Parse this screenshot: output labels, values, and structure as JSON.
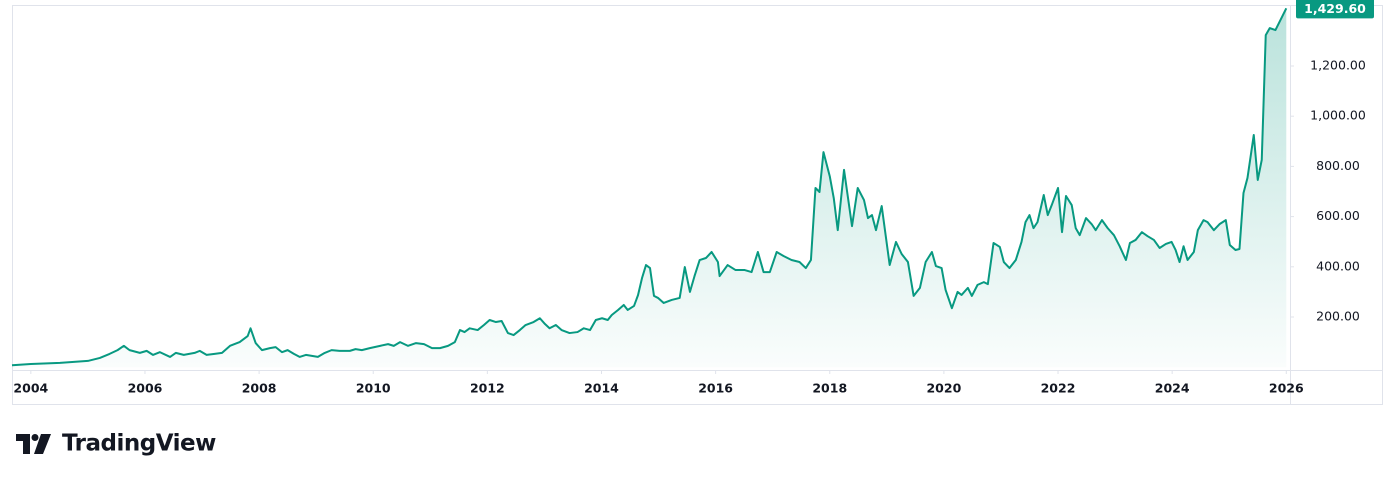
{
  "chart_data": {
    "type": "area",
    "color": "#089981",
    "grid": false,
    "xlim": [
      2003.67,
      2026.03
    ],
    "ylim": [
      0,
      1443
    ],
    "xticks": [
      2004,
      2006,
      2008,
      2010,
      2012,
      2014,
      2016,
      2018,
      2020,
      2022,
      2024,
      2026
    ],
    "yticks": [
      {
        "value": 200,
        "label": "200.00"
      },
      {
        "value": 400,
        "label": "400.00"
      },
      {
        "value": 600,
        "label": "600.00"
      },
      {
        "value": 800,
        "label": "800.00"
      },
      {
        "value": 1000,
        "label": "1,000.00"
      },
      {
        "value": 1200,
        "label": "1,200.00"
      }
    ],
    "last_price": {
      "value": 1429.6,
      "label": "1,429.60"
    },
    "x": [
      2003.67,
      2004.0,
      2004.51,
      2005.0,
      2005.21,
      2005.38,
      2005.52,
      2005.63,
      2005.73,
      2005.91,
      2006.03,
      2006.14,
      2006.26,
      2006.44,
      2006.54,
      2006.68,
      2006.87,
      2006.96,
      2007.08,
      2007.22,
      2007.35,
      2007.49,
      2007.66,
      2007.8,
      2007.85,
      2007.94,
      2008.05,
      2008.19,
      2008.29,
      2008.4,
      2008.5,
      2008.61,
      2008.71,
      2008.82,
      2009.03,
      2009.15,
      2009.27,
      2009.41,
      2009.59,
      2009.69,
      2009.8,
      2009.94,
      2010.12,
      2010.26,
      2010.36,
      2010.47,
      2010.61,
      2010.75,
      2010.89,
      2011.03,
      2011.17,
      2011.31,
      2011.43,
      2011.52,
      2011.6,
      2011.69,
      2011.83,
      2011.94,
      2012.04,
      2012.15,
      2012.25,
      2012.36,
      2012.46,
      2012.57,
      2012.67,
      2012.81,
      2012.92,
      2013.01,
      2013.09,
      2013.2,
      2013.3,
      2013.44,
      2013.58,
      2013.69,
      2013.8,
      2013.9,
      2014.01,
      2014.11,
      2014.18,
      2014.29,
      2014.39,
      2014.46,
      2014.57,
      2014.64,
      2014.71,
      2014.78,
      2014.85,
      2014.92,
      2014.99,
      2015.09,
      2015.23,
      2015.37,
      2015.46,
      2015.55,
      2015.63,
      2015.72,
      2015.83,
      2015.93,
      2016.04,
      2016.07,
      2016.21,
      2016.35,
      2016.51,
      2016.63,
      2016.74,
      2016.84,
      2016.95,
      2017.07,
      2017.19,
      2017.33,
      2017.47,
      2017.58,
      2017.67,
      2017.75,
      2017.82,
      2017.89,
      2018.0,
      2018.07,
      2018.14,
      2018.25,
      2018.32,
      2018.39,
      2018.49,
      2018.6,
      2018.67,
      2018.74,
      2018.81,
      2018.91,
      2019.05,
      2019.16,
      2019.26,
      2019.37,
      2019.47,
      2019.58,
      2019.68,
      2019.79,
      2019.86,
      2019.96,
      2020.03,
      2020.14,
      2020.24,
      2020.31,
      2020.42,
      2020.49,
      2020.59,
      2020.7,
      2020.77,
      2020.87,
      2020.98,
      2021.05,
      2021.15,
      2021.26,
      2021.36,
      2021.43,
      2021.5,
      2021.57,
      2021.64,
      2021.75,
      2021.82,
      2021.89,
      2022.0,
      2022.07,
      2022.14,
      2022.24,
      2022.31,
      2022.38,
      2022.49,
      2022.59,
      2022.66,
      2022.77,
      2022.87,
      2022.98,
      2023.08,
      2023.19,
      2023.26,
      2023.36,
      2023.47,
      2023.57,
      2023.68,
      2023.78,
      2023.89,
      2023.99,
      2024.06,
      2024.13,
      2024.2,
      2024.27,
      2024.38,
      2024.45,
      2024.55,
      2024.62,
      2024.73,
      2024.83,
      2024.94,
      2025.01,
      2025.11,
      2025.18,
      2025.25,
      2025.32,
      2025.43,
      2025.5,
      2025.57,
      2025.64,
      2025.71,
      2025.81,
      2026.0
    ],
    "values": [
      8,
      13,
      17,
      25,
      37,
      53,
      68,
      85,
      68,
      57,
      65,
      49,
      60,
      41,
      57,
      49,
      57,
      65,
      49,
      53,
      57,
      85,
      100,
      124,
      155,
      96,
      68,
      76,
      80,
      60,
      68,
      53,
      41,
      49,
      41,
      57,
      68,
      65,
      65,
      72,
      68,
      76,
      85,
      92,
      85,
      100,
      85,
      96,
      92,
      76,
      76,
      85,
      100,
      148,
      140,
      155,
      148,
      168,
      188,
      180,
      184,
      136,
      128,
      148,
      168,
      180,
      195,
      172,
      155,
      168,
      148,
      136,
      140,
      155,
      148,
      188,
      195,
      188,
      208,
      228,
      248,
      228,
      244,
      287,
      355,
      407,
      395,
      284,
      276,
      256,
      268,
      276,
      399,
      300,
      363,
      427,
      435,
      459,
      419,
      363,
      407,
      387,
      387,
      379,
      459,
      379,
      379,
      459,
      443,
      427,
      419,
      395,
      427,
      714,
      698,
      857,
      761,
      674,
      546,
      786,
      674,
      562,
      714,
      666,
      594,
      606,
      546,
      642,
      407,
      499,
      451,
      419,
      284,
      316,
      419,
      459,
      403,
      395,
      308,
      235,
      300,
      288,
      316,
      284,
      328,
      339,
      331,
      495,
      479,
      419,
      395,
      427,
      499,
      578,
      606,
      554,
      578,
      686,
      606,
      646,
      714,
      538,
      682,
      646,
      554,
      526,
      594,
      570,
      546,
      586,
      554,
      526,
      482,
      427,
      495,
      507,
      538,
      522,
      507,
      475,
      491,
      499,
      467,
      419,
      482,
      427,
      459,
      546,
      586,
      578,
      546,
      570,
      586,
      487,
      467,
      471,
      694,
      754,
      925,
      746,
      826,
      1323,
      1351,
      1343,
      1429.6
    ]
  },
  "brand": "TradingView"
}
